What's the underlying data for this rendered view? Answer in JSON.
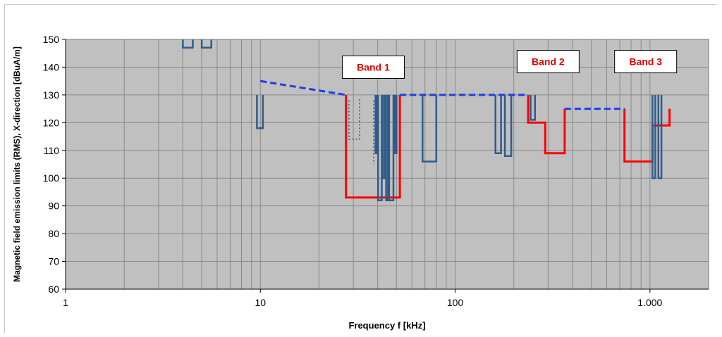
{
  "chart_data": {
    "type": "line",
    "title": "",
    "xlabel": "Frequency f [kHz]",
    "ylabel": "Magnetic field emission limits (RMS), X-direction [dBuA/m]",
    "xscale": "log",
    "xlim": [
      1,
      2000
    ],
    "ylim": [
      60,
      150
    ],
    "grid": true,
    "x_tick_labels": [
      {
        "value": 1,
        "label": "1"
      },
      {
        "value": 10,
        "label": "10"
      },
      {
        "value": 100,
        "label": "100"
      },
      {
        "value": 1000,
        "label": "1.000"
      }
    ],
    "y_ticks": [
      60,
      70,
      80,
      90,
      100,
      110,
      120,
      130,
      140,
      150
    ],
    "annotations": [
      {
        "text": "Band 1",
        "x": 38,
        "y": 140
      },
      {
        "text": "Band 2",
        "x": 300,
        "y": 142
      },
      {
        "text": "Band 3",
        "x": 950,
        "y": 142
      }
    ],
    "series": [
      {
        "style": "solid",
        "color": "#ff0000",
        "segments": [
          [
            [
              27.5,
              130
            ],
            [
              27.5,
              93
            ],
            [
              52,
              93
            ],
            [
              52,
              130
            ]
          ],
          [
            [
              237,
              130
            ],
            [
              237,
              120
            ],
            [
              290,
              120
            ],
            [
              290,
              109
            ],
            [
              365,
              109
            ],
            [
              365,
              125
            ]
          ],
          [
            [
              740,
              125
            ],
            [
              740,
              106
            ],
            [
              1030,
              106
            ],
            [
              1030,
              119
            ],
            [
              1260,
              119
            ],
            [
              1260,
              125
            ]
          ]
        ]
      },
      {
        "style": "dashed",
        "color": "#1a3ee8",
        "segments": [
          [
            [
              10,
              135
            ],
            [
              27.5,
              130
            ]
          ],
          [
            [
              52,
              130
            ],
            [
              237,
              130
            ]
          ],
          [
            [
              365,
              125
            ],
            [
              740,
              125
            ]
          ]
        ]
      },
      {
        "style": "solid",
        "color": "#2f5b8a",
        "segments": [
          [
            [
              4.0,
              150
            ],
            [
              4.0,
              147
            ],
            [
              4.5,
              147
            ],
            [
              4.5,
              150
            ]
          ],
          [
            [
              5.0,
              150
            ],
            [
              5.0,
              147
            ],
            [
              5.6,
              147
            ],
            [
              5.6,
              150
            ]
          ],
          [
            [
              9.6,
              130
            ],
            [
              9.6,
              118
            ],
            [
              10.3,
              118
            ],
            [
              10.3,
              130
            ]
          ],
          [
            [
              39.0,
              130
            ],
            [
              39.0,
              109
            ],
            [
              39.7,
              109
            ],
            [
              39.7,
              130
            ]
          ],
          [
            [
              40.2,
              130
            ],
            [
              40.2,
              92
            ],
            [
              42.0,
              92
            ],
            [
              42.0,
              130
            ]
          ],
          [
            [
              42.6,
              130
            ],
            [
              42.6,
              100
            ],
            [
              43.6,
              100
            ],
            [
              43.6,
              130
            ]
          ],
          [
            [
              44.2,
              130
            ],
            [
              44.2,
              92
            ],
            [
              45.2,
              92
            ],
            [
              45.2,
              130
            ]
          ],
          [
            [
              45.8,
              130
            ],
            [
              45.8,
              92
            ],
            [
              48.2,
              92
            ],
            [
              48.2,
              130
            ]
          ],
          [
            [
              49.0,
              130
            ],
            [
              49.0,
              109
            ],
            [
              50.0,
              109
            ],
            [
              50.0,
              130
            ]
          ],
          [
            [
              68,
              130
            ],
            [
              68,
              106
            ],
            [
              80,
              106
            ],
            [
              80,
              130
            ]
          ],
          [
            [
              161,
              130
            ],
            [
              161,
              109
            ],
            [
              172,
              109
            ],
            [
              172,
              130
            ]
          ],
          [
            [
              180,
              130
            ],
            [
              180,
              108
            ],
            [
              194,
              108
            ],
            [
              194,
              130
            ]
          ],
          [
            [
              244,
              130
            ],
            [
              244,
              121
            ],
            [
              257,
              121
            ],
            [
              257,
              130
            ]
          ],
          [
            [
              1030,
              130
            ],
            [
              1030,
              100
            ],
            [
              1065,
              100
            ],
            [
              1065,
              130
            ]
          ],
          [
            [
              1105,
              130
            ],
            [
              1105,
              100
            ],
            [
              1145,
              100
            ],
            [
              1145,
              130
            ]
          ]
        ]
      },
      {
        "style": "dotted",
        "color": "#2f5b8a",
        "segments": [
          [
            [
              28.5,
              128
            ],
            [
              28.5,
              114
            ],
            [
              32.3,
              114
            ],
            [
              32.3,
              129
            ]
          ],
          [
            [
              38.2,
              128
            ],
            [
              38.2,
              105
            ]
          ]
        ]
      }
    ]
  }
}
